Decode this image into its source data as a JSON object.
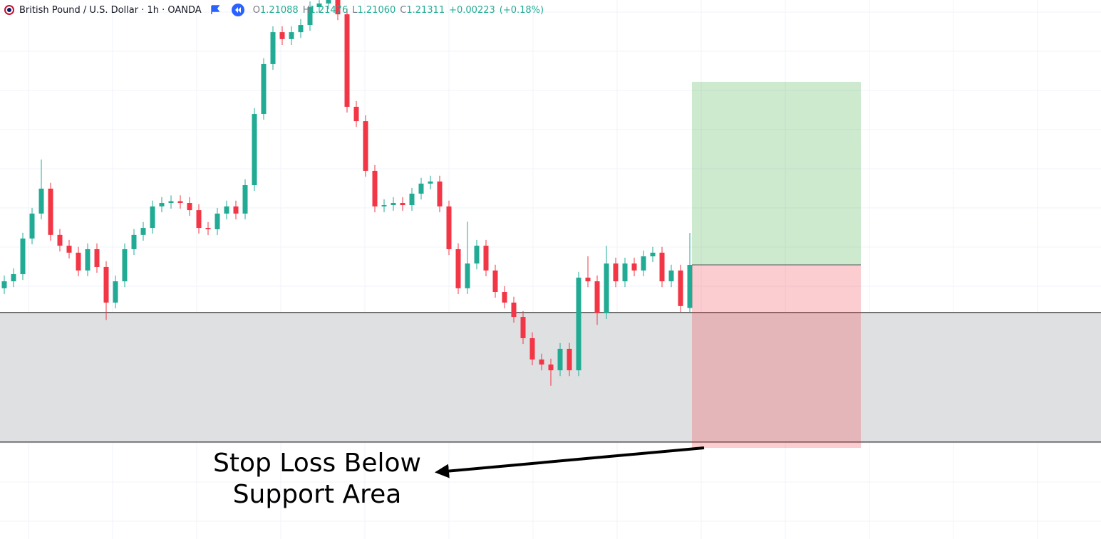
{
  "chart_data": {
    "type": "candlestick",
    "title": "British Pound / U.S. Dollar · 1h · OANDA",
    "ohlc_legend": [
      {
        "name": "O",
        "value": 1.21088
      },
      {
        "name": "H",
        "value": 1.21476
      },
      {
        "name": "L",
        "value": 1.2106,
        "label": "1.21060"
      },
      {
        "name": "C",
        "value": 1.21311
      }
    ],
    "change": {
      "value": 0.00223,
      "label": "+0.00223"
    },
    "change_pct": {
      "value": 0.18,
      "label": "(+0.18%)"
    },
    "up_color": "#22ab94",
    "down_color": "#f23645",
    "ylim": [
      1.19894,
      1.2268
    ],
    "support_zone": [
      1.20395,
      1.21065
    ],
    "position": {
      "target": 1.22257,
      "entry": 1.21311,
      "stop": 1.20365
    },
    "annotation": [
      "Stop Loss Below",
      "Support Area"
    ],
    "ohlc": [
      [
        1.2119,
        1.21256,
        1.2116,
        1.21226
      ],
      [
        1.21226,
        1.21293,
        1.21196,
        1.21263
      ],
      [
        1.21263,
        1.21477,
        1.21233,
        1.21447
      ],
      [
        1.21447,
        1.21606,
        1.21417,
        1.21576
      ],
      [
        1.21576,
        1.21855,
        1.21546,
        1.21705
      ],
      [
        1.21705,
        1.21735,
        1.21436,
        1.21466
      ],
      [
        1.21466,
        1.21496,
        1.2138,
        1.2141
      ],
      [
        1.2141,
        1.2144,
        1.21344,
        1.21374
      ],
      [
        1.21374,
        1.21404,
        1.21252,
        1.21282
      ],
      [
        1.21282,
        1.21422,
        1.21252,
        1.21392
      ],
      [
        1.21392,
        1.21422,
        1.2127,
        1.213
      ],
      [
        1.213,
        1.2133,
        1.21026,
        1.21116
      ],
      [
        1.21116,
        1.21256,
        1.21086,
        1.21226
      ],
      [
        1.21226,
        1.21422,
        1.21196,
        1.21392
      ],
      [
        1.21392,
        1.21496,
        1.21362,
        1.21466
      ],
      [
        1.21466,
        1.21532,
        1.21436,
        1.21502
      ],
      [
        1.21502,
        1.21643,
        1.21472,
        1.21613
      ],
      [
        1.21613,
        1.21661,
        1.21583,
        1.21631
      ],
      [
        1.21631,
        1.2167,
        1.21601,
        1.2164
      ],
      [
        1.2164,
        1.2167,
        1.21601,
        1.21631
      ],
      [
        1.21631,
        1.21661,
        1.21564,
        1.21594
      ],
      [
        1.21594,
        1.21624,
        1.21472,
        1.21502
      ],
      [
        1.21502,
        1.21532,
        1.21465,
        1.21495
      ],
      [
        1.21495,
        1.21606,
        1.21465,
        1.21576
      ],
      [
        1.21576,
        1.21643,
        1.21546,
        1.21613
      ],
      [
        1.21613,
        1.21643,
        1.21546,
        1.21576
      ],
      [
        1.21576,
        1.21753,
        1.21546,
        1.21723
      ],
      [
        1.21723,
        1.22121,
        1.21693,
        1.22091
      ],
      [
        1.22091,
        1.22379,
        1.22061,
        1.22349
      ],
      [
        1.22349,
        1.22544,
        1.22319,
        1.22514
      ],
      [
        1.22514,
        1.22544,
        1.22448,
        1.22478
      ],
      [
        1.22478,
        1.22544,
        1.22448,
        1.22514
      ],
      [
        1.22514,
        1.22581,
        1.22484,
        1.22551
      ],
      [
        1.22551,
        1.22673,
        1.22521,
        1.22643
      ],
      [
        1.22643,
        1.22692,
        1.22613,
        1.22662
      ],
      [
        1.22662,
        1.2271,
        1.22632,
        1.2268
      ],
      [
        1.2268,
        1.2271,
        1.22576,
        1.22606
      ],
      [
        1.22606,
        1.22636,
        1.22098,
        1.22128
      ],
      [
        1.22128,
        1.22158,
        1.22024,
        1.22054
      ],
      [
        1.22054,
        1.22084,
        1.21767,
        1.21797
      ],
      [
        1.21797,
        1.21827,
        1.21583,
        1.21613
      ],
      [
        1.21613,
        1.2165,
        1.21583,
        1.2162
      ],
      [
        1.2162,
        1.21661,
        1.2159,
        1.21631
      ],
      [
        1.21631,
        1.21661,
        1.2159,
        1.2162
      ],
      [
        1.2162,
        1.21709,
        1.2159,
        1.21679
      ],
      [
        1.21679,
        1.21761,
        1.21649,
        1.21731
      ],
      [
        1.21731,
        1.21772,
        1.21701,
        1.21742
      ],
      [
        1.21742,
        1.21772,
        1.21583,
        1.21613
      ],
      [
        1.21613,
        1.21643,
        1.21362,
        1.21392
      ],
      [
        1.21392,
        1.21422,
        1.2116,
        1.2119
      ],
      [
        1.2119,
        1.21534,
        1.2116,
        1.21318
      ],
      [
        1.21318,
        1.2144,
        1.21288,
        1.2141
      ],
      [
        1.2141,
        1.2144,
        1.21252,
        1.21282
      ],
      [
        1.21282,
        1.21312,
        1.21141,
        1.21171
      ],
      [
        1.21171,
        1.21201,
        1.21086,
        1.21116
      ],
      [
        1.21116,
        1.21146,
        1.21012,
        1.21042
      ],
      [
        1.21042,
        1.21072,
        1.20902,
        1.20932
      ],
      [
        1.20932,
        1.20962,
        1.20792,
        1.20822
      ],
      [
        1.20822,
        1.20852,
        1.20766,
        1.20796
      ],
      [
        1.20796,
        1.20826,
        1.20686,
        1.20766
      ],
      [
        1.20766,
        1.20907,
        1.20736,
        1.20877
      ],
      [
        1.20877,
        1.20907,
        1.20736,
        1.20766
      ],
      [
        1.20766,
        1.21275,
        1.20736,
        1.21245
      ],
      [
        1.21245,
        1.21355,
        1.21196,
        1.21226
      ],
      [
        1.21226,
        1.21256,
        1.21001,
        1.21061
      ],
      [
        1.21061,
        1.2141,
        1.21031,
        1.21318
      ],
      [
        1.21318,
        1.21348,
        1.21196,
        1.21226
      ],
      [
        1.21226,
        1.21348,
        1.21196,
        1.21318
      ],
      [
        1.21318,
        1.21348,
        1.21252,
        1.21282
      ],
      [
        1.21282,
        1.21385,
        1.21252,
        1.21355
      ],
      [
        1.21355,
        1.21404,
        1.21325,
        1.21374
      ],
      [
        1.21374,
        1.21404,
        1.21196,
        1.21226
      ],
      [
        1.21226,
        1.21312,
        1.21196,
        1.21282
      ],
      [
        1.21282,
        1.21312,
        1.21068,
        1.21098
      ],
      [
        1.21088,
        1.21476,
        1.2106,
        1.21311
      ]
    ]
  }
}
